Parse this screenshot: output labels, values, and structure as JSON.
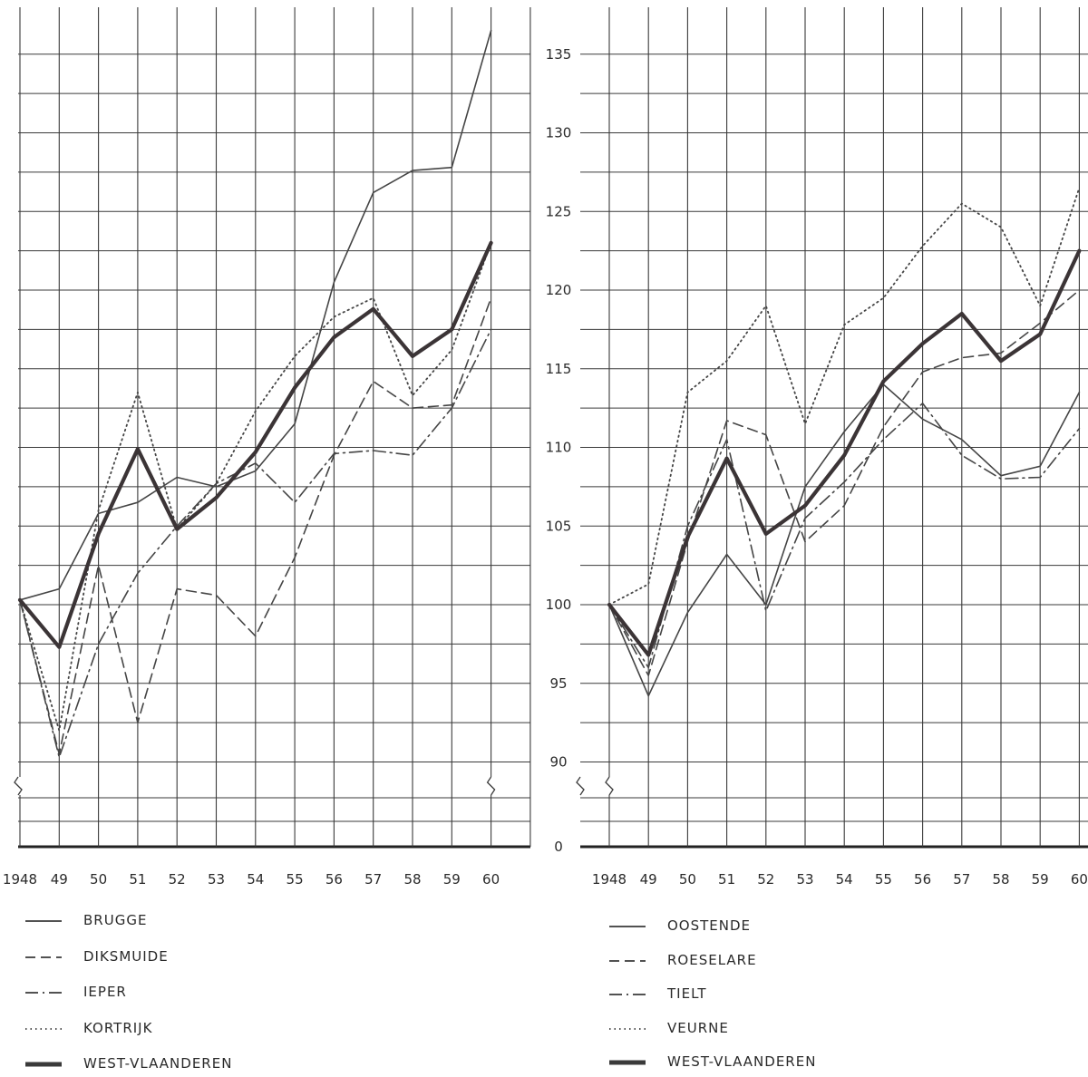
{
  "chart_data": [
    {
      "type": "line",
      "x": [
        "1948",
        "49",
        "50",
        "51",
        "52",
        "53",
        "54",
        "55",
        "56",
        "57",
        "58",
        "59",
        "60"
      ],
      "ylim": [
        90,
        137
      ],
      "y_ticks": [
        "135",
        "130",
        "125",
        "120",
        "115",
        "110",
        "105",
        "100",
        "95",
        "90",
        "0"
      ],
      "axis_break": true,
      "grid": true,
      "legend_position": "bottom",
      "series": [
        {
          "name": "BRUGGE",
          "style": "solid",
          "values": [
            100.3,
            101,
            105.8,
            106.5,
            108.1,
            107.5,
            108.5,
            111.5,
            120.5,
            126.2,
            127.6,
            127.8,
            136.5
          ]
        },
        {
          "name": "DIKSMUIDE",
          "style": "dashed",
          "values": [
            100.3,
            90.5,
            102.5,
            92.5,
            101,
            100.6,
            98,
            103,
            109.5,
            114.2,
            112.5,
            112.7,
            119.5
          ]
        },
        {
          "name": "IEPER",
          "style": "dashdot",
          "values": [
            100.3,
            90.3,
            97.5,
            102,
            105,
            107.7,
            109,
            106.5,
            109.6,
            109.8,
            109.5,
            112.5,
            117.5
          ]
        },
        {
          "name": "KORTRIJK",
          "style": "dotted",
          "values": [
            100.3,
            92,
            106,
            113.5,
            104.8,
            107.7,
            112.3,
            115.8,
            118.3,
            119.5,
            113.3,
            116.2,
            123
          ]
        },
        {
          "name": "WEST-VLAANDEREN",
          "style": "thick",
          "values": [
            100.3,
            97.3,
            104.5,
            109.9,
            104.8,
            106.8,
            109.7,
            113.8,
            117,
            118.8,
            115.8,
            117.5,
            123
          ]
        }
      ]
    },
    {
      "type": "line",
      "x": [
        "1948",
        "49",
        "50",
        "51",
        "52",
        "53",
        "54",
        "55",
        "56",
        "57",
        "58",
        "59",
        "60"
      ],
      "ylim": [
        90,
        137
      ],
      "axis_break": true,
      "grid": true,
      "legend_position": "bottom",
      "series": [
        {
          "name": "OOSTENDE",
          "style": "solid",
          "values": [
            100,
            94.2,
            99.5,
            103.2,
            100,
            107.5,
            111,
            114,
            111.8,
            110.5,
            108.2,
            108.8,
            113.5
          ]
        },
        {
          "name": "ROESELARE",
          "style": "dashed",
          "values": [
            100,
            95.5,
            104,
            111.7,
            110.8,
            104,
            106.3,
            111.3,
            114.8,
            115.7,
            116,
            117.9,
            120
          ]
        },
        {
          "name": "TIELT",
          "style": "dashdot",
          "values": [
            100,
            96,
            105,
            110.5,
            99.6,
            105.5,
            107.8,
            110.5,
            112.8,
            109.5,
            108,
            108.1,
            111.2
          ]
        },
        {
          "name": "VEURNE",
          "style": "dotted",
          "values": [
            100,
            101.3,
            113.5,
            115.5,
            119,
            111.5,
            117.8,
            119.5,
            122.8,
            125.5,
            124,
            119,
            126.5
          ]
        },
        {
          "name": "WEST-VLAANDEREN",
          "style": "thick",
          "values": [
            100,
            96.8,
            104.3,
            109.3,
            104.5,
            106.3,
            109.5,
            114.2,
            116.6,
            118.5,
            115.5,
            117.2,
            122.5
          ]
        }
      ]
    }
  ]
}
